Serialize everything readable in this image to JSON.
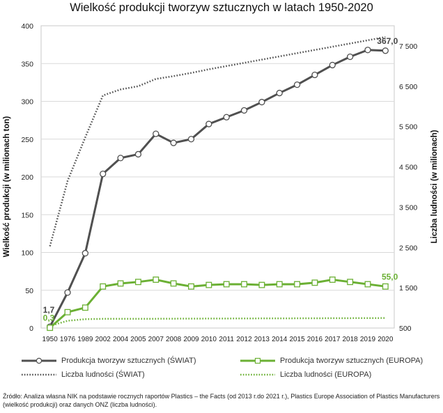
{
  "chart_data": {
    "type": "line",
    "title": "Wielkość produkcji tworzyw sztucznych w latach 1950-2020",
    "ylabel": "Wielkość produkcji (w milionach ton)",
    "y2label": "Liczba ludności (w milionach)",
    "ylim": [
      0,
      400
    ],
    "y2lim": [
      500,
      8000
    ],
    "yticks": [
      "0",
      "50",
      "100",
      "150",
      "200",
      "250",
      "300",
      "350",
      "400"
    ],
    "y2ticks": [
      "500",
      "1 500",
      "2 500",
      "3 500",
      "4 500",
      "5 500",
      "6 500",
      "7 500"
    ],
    "categories": [
      "1950",
      "1976",
      "1989",
      "2002",
      "2004",
      "2005",
      "2007",
      "2008",
      "2009",
      "2010",
      "2011",
      "2012",
      "2013",
      "2014",
      "2015",
      "2016",
      "2017",
      "2018",
      "2019",
      "2020"
    ],
    "grid": true,
    "legend_position": "bottom",
    "series": [
      {
        "name": "Produkcja tworzyw sztucznych (ŚWIAT)",
        "axis": "left",
        "color": "#505050",
        "style": "solid-circle",
        "values": [
          1.7,
          47,
          99,
          204,
          225,
          230,
          257,
          245,
          250,
          270,
          279,
          288,
          299,
          311,
          322,
          335,
          348,
          359,
          368,
          367
        ]
      },
      {
        "name": "Produkcja tworzyw sztucznych (EUROPA)",
        "axis": "left",
        "color": "#6bb034",
        "style": "solid-square",
        "values": [
          0.3,
          21,
          27,
          55,
          59,
          61,
          64,
          59,
          55,
          57,
          58,
          58,
          57,
          58,
          58,
          60,
          64,
          61,
          58,
          55
        ]
      },
      {
        "name": "Liczba ludności (ŚWIAT)",
        "axis": "right",
        "color": "#505050",
        "style": "dotted",
        "values": [
          2530,
          4150,
          5230,
          6270,
          6420,
          6500,
          6680,
          6750,
          6830,
          6920,
          7000,
          7080,
          7160,
          7240,
          7320,
          7400,
          7480,
          7560,
          7640,
          7720
        ]
      },
      {
        "name": "Liczba ludności (EUROPA)",
        "axis": "right",
        "color": "#6bb034",
        "style": "dotted",
        "values": [
          550,
          680,
          720,
          728,
          728,
          729,
          730,
          732,
          733,
          735,
          736,
          738,
          739,
          740,
          741,
          742,
          744,
          745,
          746,
          748
        ]
      }
    ],
    "annotations": [
      {
        "series": 0,
        "index": 0,
        "text": "1,7"
      },
      {
        "series": 1,
        "index": 0,
        "text": "0,3"
      },
      {
        "series": 0,
        "index": 19,
        "text": "367,0"
      },
      {
        "series": 1,
        "index": 19,
        "text": "55,0"
      }
    ]
  },
  "source": "Źródło: Analiza własna NIK na podstawie rocznych raportów Plastics – the Facts (od 2013 r.do 2021 r.), Plastics Europe Association of Plastics Manufacturers (wielkość produkcji) oraz danych ONZ (liczba ludności)."
}
